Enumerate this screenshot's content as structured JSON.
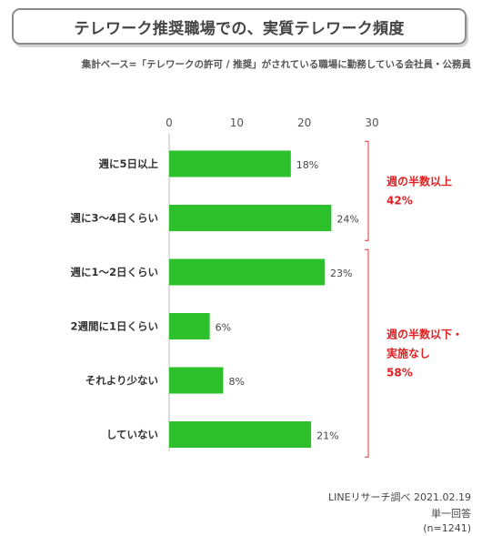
{
  "title": "テレワーク推奨職場での、実質テレワーク頻度",
  "subtitle": "集計ベース=「テレワークの許可 / 推奨」がされている職場に勤務している会社員・公務員",
  "source": {
    "line1": "LINEリサーチ調べ 2021.02.19",
    "line2": "単一回答",
    "line3": "(n=1241)"
  },
  "colors": {
    "bar": "#2cc02c",
    "bracket": "#e83030",
    "annotation": "#e02020"
  },
  "chart_data": {
    "type": "bar",
    "orientation": "horizontal",
    "xlim": [
      0,
      30
    ],
    "ticks": [
      0,
      10,
      20,
      30
    ],
    "tick_labels": [
      "0",
      "10",
      "20",
      "30"
    ],
    "grid": false,
    "categories": [
      "週に5日以上",
      "週に3～4日くらい",
      "週に1～2日くらい",
      "2週間に1日くらい",
      "それより少ない",
      "していない"
    ],
    "values": [
      18,
      24,
      23,
      6,
      8,
      21
    ],
    "value_labels": [
      "18%",
      "24%",
      "23%",
      "6%",
      "8%",
      "21%"
    ],
    "groups": [
      {
        "label_lines": [
          "週の半数以上",
          "42%"
        ],
        "start": 0,
        "end": 1
      },
      {
        "label_lines": [
          "週の半数以下・",
          "実施なし",
          "58%"
        ],
        "start": 2,
        "end": 5
      }
    ]
  }
}
